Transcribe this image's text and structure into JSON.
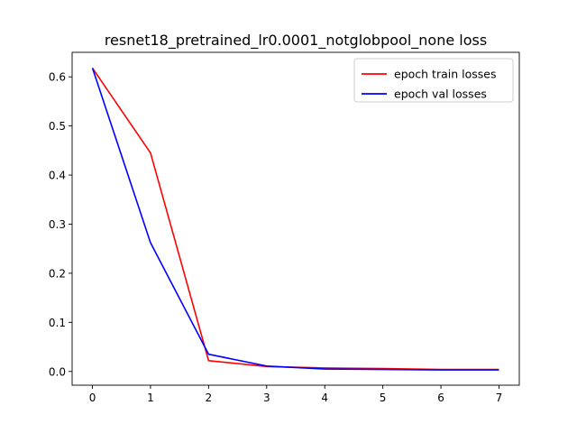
{
  "chart_data": {
    "type": "line",
    "title": "resnet18_pretrained_lr0.0001_notglobpool_none loss",
    "xlabel": "",
    "ylabel": "",
    "x": [
      0,
      1,
      2,
      3,
      4,
      5,
      6,
      7
    ],
    "xticks": [
      "0",
      "1",
      "2",
      "3",
      "4",
      "5",
      "6",
      "7"
    ],
    "yticks": [
      "0.0",
      "0.1",
      "0.2",
      "0.3",
      "0.4",
      "0.5",
      "0.6"
    ],
    "xlim": [
      -0.35,
      7.35
    ],
    "ylim": [
      -0.028,
      0.65
    ],
    "grid": false,
    "legend_position": "top-right",
    "series": [
      {
        "name": "epoch train losses",
        "color": "#ff0000",
        "values": [
          0.618,
          0.445,
          0.022,
          0.01,
          0.007,
          0.006,
          0.004,
          0.004
        ]
      },
      {
        "name": "epoch val losses",
        "color": "#0000ff",
        "values": [
          0.618,
          0.262,
          0.035,
          0.011,
          0.005,
          0.004,
          0.003,
          0.003
        ]
      }
    ]
  }
}
